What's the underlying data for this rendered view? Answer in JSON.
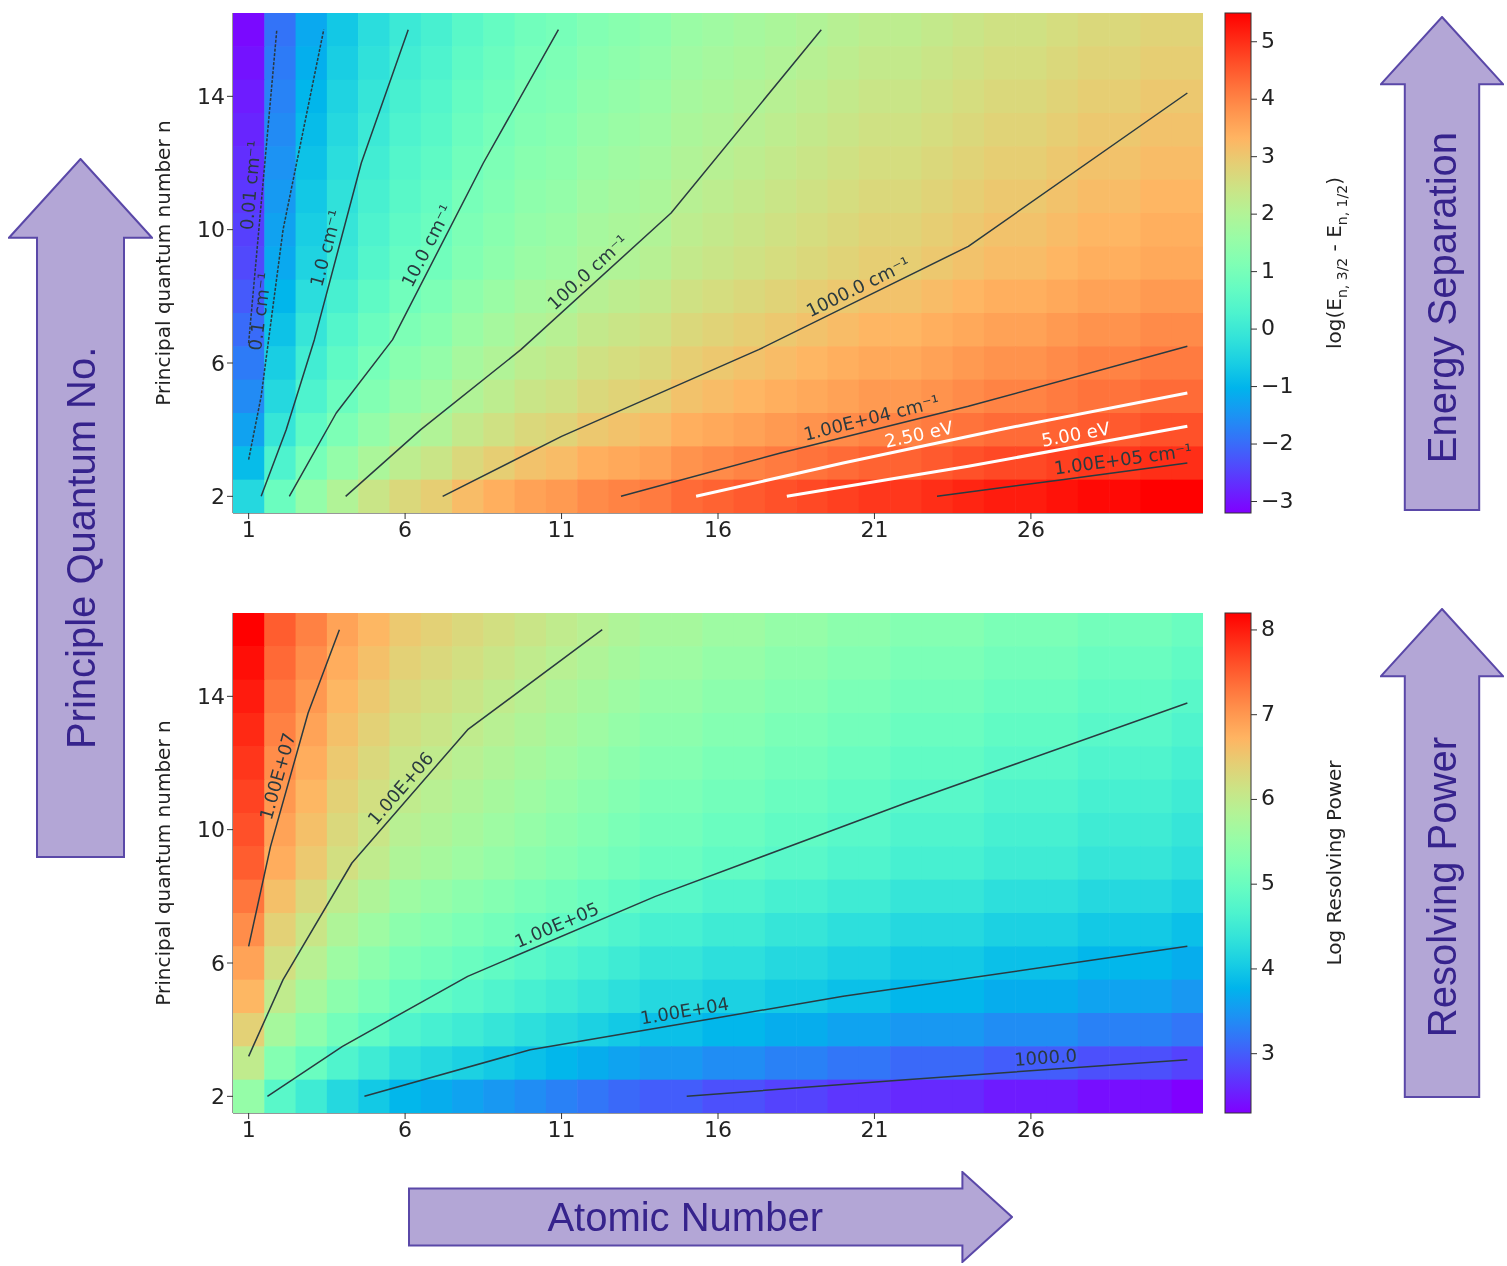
{
  "chart_data": [
    {
      "type": "heatmap",
      "ylabel": "Principal quantum number n",
      "clabel": "log(E$_{n, 3/2}$ - E$_{n, 1/2}$)",
      "annotations": [
        "Principle Quantum No.",
        "Energy Separation"
      ],
      "x": [
        1,
        2,
        3,
        4,
        5,
        6,
        7,
        8,
        9,
        10,
        11,
        12,
        13,
        14,
        15,
        16,
        17,
        18,
        19,
        20,
        21,
        22,
        23,
        24,
        25,
        26,
        27,
        28,
        29,
        30,
        31
      ],
      "xlim": [
        0.5,
        31.5
      ],
      "xticks": [
        1,
        6,
        11,
        16,
        21,
        26
      ],
      "ylim": [
        1.5,
        16.5
      ],
      "yticks": [
        2,
        6,
        10,
        14
      ],
      "clim": [
        -3.2,
        5.5
      ],
      "cticks": [
        -3,
        -2,
        -1,
        0,
        1,
        2,
        3,
        4,
        5
      ],
      "cells": [
        [
          -3.1,
          -1.9,
          -1.2,
          -0.7,
          -0.3,
          0.0,
          0.2,
          0.5,
          0.7,
          0.9,
          1.0,
          1.2,
          1.3,
          1.4,
          1.6,
          1.7,
          1.8,
          1.9,
          2.0,
          2.1,
          2.2,
          2.2,
          2.3,
          2.4,
          2.5,
          2.5,
          2.6,
          2.7,
          2.7,
          2.8,
          2.8
        ],
        [
          -3.0,
          -1.8,
          -1.1,
          -0.6,
          -0.2,
          0.1,
          0.3,
          0.6,
          0.8,
          1.0,
          1.1,
          1.3,
          1.4,
          1.5,
          1.7,
          1.8,
          1.9,
          2.0,
          2.1,
          2.2,
          2.3,
          2.3,
          2.4,
          2.5,
          2.6,
          2.6,
          2.7,
          2.8,
          2.8,
          2.9,
          2.9
        ],
        [
          -2.9,
          -1.7,
          -1.0,
          -0.5,
          -0.1,
          0.2,
          0.4,
          0.7,
          0.9,
          1.1,
          1.2,
          1.4,
          1.5,
          1.6,
          1.8,
          1.9,
          2.0,
          2.1,
          2.2,
          2.3,
          2.4,
          2.4,
          2.5,
          2.6,
          2.7,
          2.7,
          2.8,
          2.9,
          2.9,
          3.0,
          3.0
        ],
        [
          -2.8,
          -1.6,
          -0.9,
          -0.4,
          0.0,
          0.3,
          0.5,
          0.8,
          1.0,
          1.2,
          1.3,
          1.5,
          1.6,
          1.7,
          1.9,
          2.0,
          2.1,
          2.2,
          2.3,
          2.4,
          2.5,
          2.5,
          2.6,
          2.7,
          2.8,
          2.8,
          2.9,
          3.0,
          3.0,
          3.1,
          3.1
        ],
        [
          -2.7,
          -1.5,
          -0.8,
          -0.3,
          0.1,
          0.4,
          0.6,
          0.9,
          1.1,
          1.3,
          1.4,
          1.6,
          1.7,
          1.8,
          2.0,
          2.1,
          2.2,
          2.3,
          2.4,
          2.5,
          2.6,
          2.6,
          2.7,
          2.8,
          2.9,
          2.9,
          3.0,
          3.1,
          3.1,
          3.2,
          3.2
        ],
        [
          -2.6,
          -1.4,
          -0.7,
          -0.2,
          0.2,
          0.5,
          0.7,
          1.0,
          1.2,
          1.4,
          1.5,
          1.7,
          1.8,
          1.9,
          2.1,
          2.2,
          2.3,
          2.4,
          2.5,
          2.6,
          2.7,
          2.7,
          2.8,
          2.9,
          3.0,
          3.0,
          3.1,
          3.2,
          3.2,
          3.3,
          3.3
        ],
        [
          -2.5,
          -1.3,
          -0.6,
          -0.1,
          0.3,
          0.6,
          0.8,
          1.1,
          1.3,
          1.5,
          1.6,
          1.8,
          1.9,
          2.0,
          2.2,
          2.3,
          2.4,
          2.5,
          2.6,
          2.7,
          2.8,
          2.8,
          2.9,
          3.0,
          3.1,
          3.1,
          3.2,
          3.3,
          3.3,
          3.4,
          3.4
        ],
        [
          -2.4,
          -1.2,
          -0.5,
          0.0,
          0.4,
          0.7,
          0.9,
          1.2,
          1.4,
          1.6,
          1.7,
          1.9,
          2.0,
          2.1,
          2.3,
          2.4,
          2.5,
          2.6,
          2.7,
          2.8,
          2.9,
          2.9,
          3.0,
          3.1,
          3.2,
          3.2,
          3.3,
          3.4,
          3.4,
          3.5,
          3.5
        ],
        [
          -2.2,
          -1.0,
          -0.3,
          0.2,
          0.6,
          0.9,
          1.1,
          1.4,
          1.6,
          1.8,
          1.9,
          2.1,
          2.2,
          2.3,
          2.5,
          2.6,
          2.7,
          2.8,
          2.9,
          3.0,
          3.1,
          3.1,
          3.2,
          3.3,
          3.4,
          3.4,
          3.5,
          3.6,
          3.6,
          3.7,
          3.7
        ],
        [
          -2.0,
          -0.8,
          -0.1,
          0.4,
          0.8,
          1.1,
          1.3,
          1.6,
          1.8,
          2.0,
          2.1,
          2.3,
          2.4,
          2.5,
          2.7,
          2.8,
          2.9,
          3.0,
          3.1,
          3.2,
          3.3,
          3.3,
          3.4,
          3.5,
          3.6,
          3.6,
          3.7,
          3.8,
          3.8,
          3.9,
          3.9
        ],
        [
          -1.8,
          -0.6,
          0.1,
          0.6,
          1.0,
          1.3,
          1.5,
          1.8,
          2.0,
          2.2,
          2.3,
          2.5,
          2.6,
          2.7,
          2.9,
          3.0,
          3.1,
          3.2,
          3.3,
          3.4,
          3.5,
          3.5,
          3.6,
          3.7,
          3.8,
          3.8,
          3.9,
          4.0,
          4.0,
          4.1,
          4.1
        ],
        [
          -1.6,
          -0.4,
          0.3,
          0.8,
          1.2,
          1.5,
          1.7,
          2.0,
          2.2,
          2.4,
          2.5,
          2.7,
          2.8,
          2.9,
          3.1,
          3.2,
          3.3,
          3.4,
          3.5,
          3.6,
          3.7,
          3.7,
          3.8,
          3.9,
          4.0,
          4.0,
          4.1,
          4.2,
          4.2,
          4.3,
          4.3
        ],
        [
          -1.3,
          -0.1,
          0.6,
          1.1,
          1.5,
          1.8,
          2.0,
          2.3,
          2.5,
          2.7,
          2.8,
          3.0,
          3.1,
          3.2,
          3.4,
          3.5,
          3.6,
          3.7,
          3.8,
          3.9,
          4.0,
          4.0,
          4.1,
          4.2,
          4.3,
          4.3,
          4.4,
          4.5,
          4.5,
          4.6,
          4.6
        ],
        [
          -0.9,
          0.3,
          1.0,
          1.5,
          1.9,
          2.2,
          2.4,
          2.7,
          2.9,
          3.1,
          3.2,
          3.4,
          3.5,
          3.6,
          3.8,
          3.9,
          4.0,
          4.1,
          4.2,
          4.3,
          4.4,
          4.4,
          4.5,
          4.6,
          4.7,
          4.7,
          4.8,
          4.9,
          4.9,
          5.0,
          5.0
        ],
        [
          -0.4,
          0.8,
          1.5,
          2.0,
          2.4,
          2.7,
          2.9,
          3.2,
          3.4,
          3.6,
          3.7,
          3.9,
          4.0,
          4.1,
          4.3,
          4.4,
          4.5,
          4.6,
          4.7,
          4.8,
          4.9,
          4.9,
          5.0,
          5.1,
          5.2,
          5.2,
          5.3,
          5.4,
          5.4,
          5.5,
          5.5
        ]
      ],
      "series": [
        {
          "type": "line",
          "name": "0.01 cm⁻¹",
          "color": "#2a3a40",
          "line_style": "dotted",
          "x": [
            1,
            1.9
          ],
          "values": [
            6.6,
            16
          ]
        },
        {
          "type": "line",
          "name": "0.1 cm⁻¹",
          "color": "#2a3a40",
          "line_style": "dotted",
          "x": [
            1,
            1.4,
            2.1,
            3.4
          ],
          "values": [
            3.1,
            5,
            10,
            16
          ]
        },
        {
          "type": "line",
          "name": "1.0 cm⁻¹",
          "color": "#2a3a40",
          "line_style": "solid",
          "x": [
            1.4,
            2.2,
            3.1,
            4.6,
            6.1
          ],
          "values": [
            2,
            4,
            6.7,
            12,
            16
          ]
        },
        {
          "type": "line",
          "name": "10.0 cm⁻¹",
          "color": "#2a3a40",
          "line_style": "solid",
          "x": [
            2.3,
            3.8,
            5.6,
            8.5,
            10.9
          ],
          "values": [
            2,
            4.5,
            6.7,
            12,
            16
          ]
        },
        {
          "type": "line",
          "name": "100.0 cm⁻¹",
          "color": "#2a3a40",
          "line_style": "solid",
          "x": [
            4.1,
            6.5,
            9.7,
            14.5,
            19.3
          ],
          "values": [
            2,
            4,
            6.4,
            10.5,
            16
          ]
        },
        {
          "type": "line",
          "name": "1000.0 cm⁻¹",
          "color": "#2a3a40",
          "line_style": "solid",
          "x": [
            7.2,
            11,
            17.3,
            24,
            31
          ],
          "values": [
            2,
            3.8,
            6.4,
            9.5,
            14.1
          ]
        },
        {
          "type": "line",
          "name": "1.00E+04 cm⁻¹",
          "color": "#2a3a40",
          "line_style": "solid",
          "x": [
            12.9,
            18,
            24,
            31
          ],
          "values": [
            2,
            3.3,
            4.7,
            6.5
          ]
        },
        {
          "type": "line",
          "name": "2.50 eV",
          "color": "#ffffff",
          "line_style": "solid",
          "x": [
            15.3,
            20,
            25,
            31
          ],
          "values": [
            2,
            3,
            4,
            5.1
          ]
        },
        {
          "type": "line",
          "name": "5.00 eV",
          "color": "#ffffff",
          "line_style": "solid",
          "x": [
            18.2,
            24,
            31
          ],
          "values": [
            2,
            2.9,
            4.1
          ]
        },
        {
          "type": "line",
          "name": "1.00E+05 cm⁻¹",
          "color": "#2a3a40",
          "line_style": "solid",
          "x": [
            23,
            27,
            31
          ],
          "values": [
            2,
            2.5,
            3
          ]
        }
      ]
    },
    {
      "type": "heatmap",
      "ylabel": "Principal quantum number n",
      "clabel": "Log Resolving Power",
      "annotations": [
        "Resolving Power",
        "Atomic Number"
      ],
      "x": [
        1,
        2,
        3,
        4,
        5,
        6,
        7,
        8,
        9,
        10,
        11,
        12,
        13,
        14,
        15,
        16,
        17,
        18,
        19,
        20,
        21,
        22,
        23,
        24,
        25,
        26,
        27,
        28,
        29,
        30,
        31
      ],
      "xlim": [
        0.5,
        31.5
      ],
      "xticks": [
        1,
        6,
        11,
        16,
        21,
        26
      ],
      "ylim": [
        1.5,
        16.5
      ],
      "yticks": [
        2,
        6,
        10,
        14
      ],
      "clim": [
        2.3,
        8.2
      ],
      "cticks": [
        3,
        4,
        5,
        6,
        7,
        8
      ],
      "cells": [
        [
          8.2,
          7.5,
          7.2,
          6.9,
          6.7,
          6.5,
          6.4,
          6.3,
          6.2,
          6.1,
          6.0,
          5.9,
          5.8,
          5.7,
          5.7,
          5.6,
          5.6,
          5.5,
          5.5,
          5.4,
          5.4,
          5.3,
          5.3,
          5.3,
          5.2,
          5.2,
          5.2,
          5.1,
          5.1,
          5.1,
          5.0
        ],
        [
          8.1,
          7.4,
          7.1,
          6.8,
          6.6,
          6.4,
          6.3,
          6.2,
          6.1,
          6.0,
          5.9,
          5.8,
          5.7,
          5.6,
          5.6,
          5.5,
          5.5,
          5.4,
          5.4,
          5.3,
          5.3,
          5.2,
          5.2,
          5.2,
          5.1,
          5.1,
          5.1,
          5.0,
          5.0,
          5.0,
          4.9
        ],
        [
          8.0,
          7.3,
          7.0,
          6.7,
          6.5,
          6.3,
          6.2,
          6.1,
          6.0,
          5.9,
          5.8,
          5.7,
          5.6,
          5.5,
          5.5,
          5.4,
          5.4,
          5.3,
          5.3,
          5.2,
          5.2,
          5.1,
          5.1,
          5.1,
          5.0,
          5.0,
          5.0,
          4.9,
          4.9,
          4.9,
          4.8
        ],
        [
          7.9,
          7.2,
          6.9,
          6.6,
          6.4,
          6.2,
          6.1,
          6.0,
          5.9,
          5.8,
          5.7,
          5.6,
          5.5,
          5.4,
          5.4,
          5.3,
          5.3,
          5.2,
          5.2,
          5.1,
          5.1,
          5.0,
          5.0,
          5.0,
          4.9,
          4.9,
          4.9,
          4.8,
          4.8,
          4.8,
          4.7
        ],
        [
          7.8,
          7.1,
          6.8,
          6.5,
          6.3,
          6.1,
          6.0,
          5.9,
          5.8,
          5.7,
          5.6,
          5.5,
          5.4,
          5.3,
          5.3,
          5.2,
          5.2,
          5.1,
          5.1,
          5.0,
          5.0,
          4.9,
          4.9,
          4.9,
          4.8,
          4.8,
          4.8,
          4.7,
          4.7,
          4.7,
          4.6
        ],
        [
          7.7,
          7.0,
          6.7,
          6.4,
          6.2,
          6.0,
          5.9,
          5.8,
          5.7,
          5.6,
          5.5,
          5.4,
          5.3,
          5.2,
          5.2,
          5.1,
          5.1,
          5.0,
          5.0,
          4.9,
          4.9,
          4.8,
          4.8,
          4.8,
          4.7,
          4.7,
          4.7,
          4.6,
          4.6,
          4.6,
          4.5
        ],
        [
          7.6,
          6.9,
          6.6,
          6.3,
          6.1,
          5.9,
          5.8,
          5.7,
          5.6,
          5.5,
          5.4,
          5.3,
          5.2,
          5.1,
          5.1,
          5.0,
          5.0,
          4.9,
          4.9,
          4.8,
          4.8,
          4.7,
          4.7,
          4.7,
          4.6,
          4.6,
          4.6,
          4.5,
          4.5,
          4.5,
          4.4
        ],
        [
          7.5,
          6.8,
          6.5,
          6.2,
          6.0,
          5.8,
          5.7,
          5.6,
          5.5,
          5.4,
          5.3,
          5.2,
          5.1,
          5.0,
          5.0,
          4.9,
          4.9,
          4.8,
          4.8,
          4.7,
          4.7,
          4.6,
          4.6,
          4.6,
          4.5,
          4.5,
          4.5,
          4.4,
          4.4,
          4.4,
          4.3
        ],
        [
          7.3,
          6.6,
          6.3,
          6.0,
          5.8,
          5.6,
          5.5,
          5.4,
          5.3,
          5.2,
          5.1,
          5.0,
          4.9,
          4.8,
          4.8,
          4.7,
          4.7,
          4.6,
          4.6,
          4.5,
          4.5,
          4.4,
          4.4,
          4.4,
          4.3,
          4.3,
          4.3,
          4.2,
          4.2,
          4.2,
          4.1
        ],
        [
          7.1,
          6.4,
          6.1,
          5.8,
          5.6,
          5.4,
          5.3,
          5.2,
          5.1,
          5.0,
          4.9,
          4.8,
          4.7,
          4.6,
          4.6,
          4.5,
          4.5,
          4.4,
          4.4,
          4.3,
          4.3,
          4.2,
          4.2,
          4.2,
          4.1,
          4.1,
          4.1,
          4.0,
          4.0,
          4.0,
          3.9
        ],
        [
          6.9,
          6.2,
          5.9,
          5.6,
          5.4,
          5.2,
          5.1,
          5.0,
          4.9,
          4.8,
          4.7,
          4.6,
          4.5,
          4.4,
          4.4,
          4.3,
          4.3,
          4.2,
          4.2,
          4.1,
          4.1,
          4.0,
          4.0,
          4.0,
          3.9,
          3.9,
          3.9,
          3.8,
          3.8,
          3.8,
          3.7
        ],
        [
          6.7,
          6.0,
          5.7,
          5.4,
          5.2,
          5.0,
          4.9,
          4.8,
          4.7,
          4.6,
          4.5,
          4.4,
          4.3,
          4.2,
          4.2,
          4.1,
          4.1,
          4.0,
          4.0,
          3.9,
          3.9,
          3.8,
          3.8,
          3.8,
          3.7,
          3.7,
          3.7,
          3.6,
          3.6,
          3.6,
          3.5
        ],
        [
          6.4,
          5.7,
          5.4,
          5.1,
          4.9,
          4.7,
          4.6,
          4.5,
          4.4,
          4.3,
          4.2,
          4.1,
          4.0,
          3.9,
          3.9,
          3.8,
          3.8,
          3.7,
          3.7,
          3.6,
          3.6,
          3.5,
          3.5,
          3.5,
          3.4,
          3.4,
          3.4,
          3.3,
          3.3,
          3.3,
          3.2
        ],
        [
          6.0,
          5.3,
          5.0,
          4.7,
          4.5,
          4.3,
          4.2,
          4.1,
          4.0,
          3.9,
          3.8,
          3.7,
          3.6,
          3.5,
          3.5,
          3.4,
          3.4,
          3.3,
          3.3,
          3.2,
          3.2,
          3.1,
          3.1,
          3.1,
          3.0,
          3.0,
          3.0,
          2.9,
          2.9,
          2.9,
          2.8
        ],
        [
          5.5,
          4.8,
          4.5,
          4.2,
          4.0,
          3.8,
          3.7,
          3.6,
          3.5,
          3.4,
          3.3,
          3.2,
          3.1,
          3.0,
          3.0,
          2.9,
          2.9,
          2.8,
          2.8,
          2.7,
          2.7,
          2.6,
          2.6,
          2.6,
          2.5,
          2.5,
          2.5,
          2.4,
          2.4,
          2.4,
          2.3
        ]
      ],
      "series": [
        {
          "type": "line",
          "name": "1.00E+07",
          "color": "#2a3a40",
          "line_style": "solid",
          "x": [
            1,
            1.7,
            2.9,
            3.9
          ],
          "values": [
            6.5,
            9.5,
            13.5,
            16
          ]
        },
        {
          "type": "line",
          "name": "1.00E+06",
          "color": "#2a3a40",
          "line_style": "solid",
          "x": [
            1,
            2.1,
            4.3,
            8,
            12.3
          ],
          "values": [
            3.2,
            5.5,
            9,
            13,
            16
          ]
        },
        {
          "type": "line",
          "name": "1.00E+05",
          "color": "#2a3a40",
          "line_style": "solid",
          "x": [
            1.6,
            4,
            8,
            14,
            22,
            31
          ],
          "values": [
            2,
            3.5,
            5.6,
            8,
            10.8,
            13.8
          ]
        },
        {
          "type": "line",
          "name": "1.00E+04",
          "color": "#2a3a40",
          "line_style": "solid",
          "x": [
            4.7,
            10,
            20,
            31
          ],
          "values": [
            2,
            3.4,
            5,
            6.5
          ]
        },
        {
          "type": "line",
          "name": "1000.0",
          "color": "#2a3a40",
          "line_style": "solid",
          "x": [
            15,
            22,
            31
          ],
          "values": [
            2,
            2.5,
            3.1
          ]
        }
      ]
    }
  ]
}
